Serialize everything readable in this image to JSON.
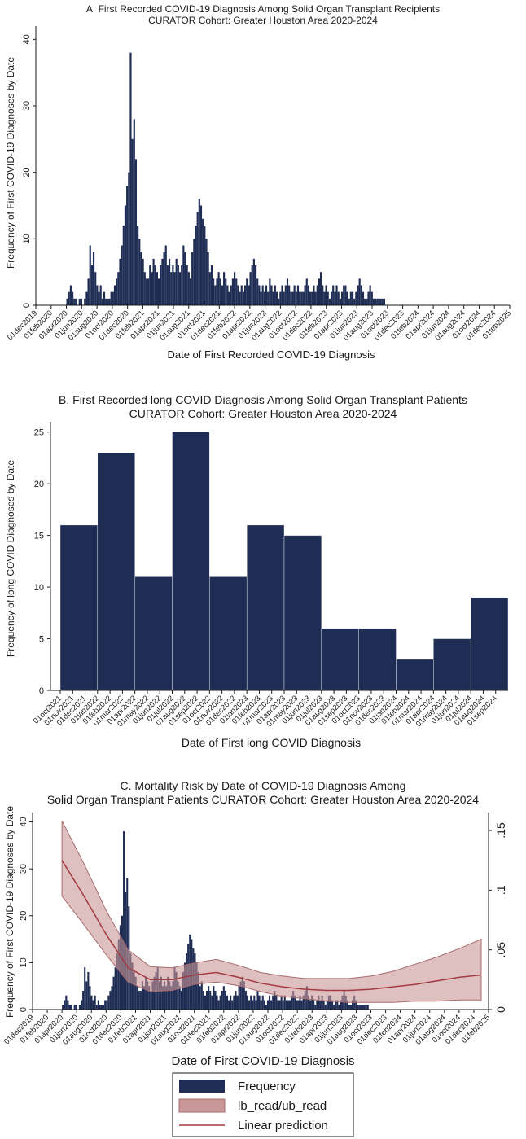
{
  "colors": {
    "bar": "#1f2d55",
    "band_fill": "#c99698",
    "band_stroke": "#a86a6d",
    "line": "#a33a3f",
    "axis": "#1a1a1a"
  },
  "chart_data": [
    {
      "id": "A",
      "type": "bar",
      "title_lines": [
        "A. First Recorded COVID-19 Diagnosis Among Solid Organ Transplant Recipients",
        "CURATOR Cohort: Greater Houston Area 2020-2024"
      ],
      "xlabel": "Date of First Recorded COVID-19 Diagnosis",
      "ylabel": "Frequency of First COVID-19 Diagnoses by Date",
      "xlim": [
        2019.917,
        2025.083
      ],
      "ylim": [
        0,
        42
      ],
      "yticks": [
        0,
        10,
        20,
        30,
        40
      ],
      "xtick_labels": [
        "01dec2019",
        "01feb2020",
        "01apr2020",
        "01jun2020",
        "01aug2020",
        "01oct2020",
        "01dec2020",
        "01feb2021",
        "01apr2021",
        "01jun2021",
        "01aug2021",
        "01oct2021",
        "01dec2021",
        "01feb2022",
        "01apr2022",
        "01jun2022",
        "01aug2022",
        "01oct2022",
        "01dec2022",
        "01feb2023",
        "01apr2023",
        "01jun2023",
        "01aug2023",
        "01oct2023",
        "01dec2023",
        "01feb2024",
        "01apr2024",
        "01jun2024",
        "01aug2024",
        "01oct2024",
        "01dec2024",
        "01feb2025"
      ],
      "bin_start": 2020.25,
      "bin_width": 0.0192,
      "values": [
        1,
        2,
        3,
        2,
        1,
        1,
        0,
        1,
        1,
        0,
        1,
        2,
        4,
        9,
        6,
        8,
        5,
        3,
        2,
        3,
        1,
        2,
        1,
        1,
        1,
        2,
        2,
        3,
        4,
        5,
        7,
        9,
        12,
        15,
        18,
        20,
        38,
        25,
        28,
        22,
        12,
        10,
        8,
        7,
        5,
        4,
        4,
        6,
        5,
        7,
        6,
        5,
        4,
        6,
        7,
        8,
        9,
        6,
        7,
        5,
        6,
        5,
        7,
        6,
        5,
        6,
        9,
        8,
        6,
        5,
        4,
        8,
        10,
        12,
        14,
        16,
        15,
        13,
        12,
        10,
        8,
        5,
        6,
        4,
        3,
        4,
        5,
        4,
        3,
        5,
        4,
        3,
        2,
        3,
        4,
        5,
        4,
        3,
        2,
        3,
        2,
        3,
        4,
        3,
        5,
        6,
        7,
        6,
        4,
        3,
        2,
        3,
        2,
        3,
        2,
        4,
        3,
        2,
        3,
        2,
        1,
        2,
        3,
        2,
        3,
        4,
        3,
        2,
        2,
        3,
        2,
        3,
        2,
        2,
        2,
        3,
        4,
        3,
        2,
        2,
        3,
        2,
        3,
        4,
        5,
        3,
        2,
        3,
        2,
        1,
        2,
        3,
        2,
        3,
        2,
        1,
        2,
        3,
        3,
        2,
        1,
        2,
        2,
        1,
        2,
        3,
        4,
        3,
        2,
        1,
        1,
        2,
        3,
        2,
        1,
        1,
        1,
        1,
        1,
        1,
        1
      ]
    },
    {
      "id": "B",
      "type": "bar",
      "title_lines": [
        "B. First Recorded long COVID Diagnosis Among Solid Organ Transplant Patients",
        "CURATOR Cohort: Greater Houston Area 2020-2024"
      ],
      "xlabel": "Date of First long COVID Diagnosis",
      "ylabel": "Frequency of long COVID Diagnoses by Date",
      "ylim": [
        0,
        26
      ],
      "yticks": [
        0,
        5,
        10,
        15,
        20,
        25
      ],
      "xtick_labels": [
        "01oct2021",
        "01nov2021",
        "01dec2021",
        "01jan2022",
        "01feb2022",
        "01mar2022",
        "01apr2022",
        "01may2022",
        "01jun2022",
        "01jul2022",
        "01aug2022",
        "01sep2022",
        "01oct2022",
        "01nov2022",
        "01dec2022",
        "01jan2023",
        "01feb2023",
        "01mar2023",
        "01apr2023",
        "01may2023",
        "01jun2023",
        "01jul2023",
        "01aug2023",
        "01sep2023",
        "01oct2023",
        "01nov2023",
        "01dec2023",
        "01jan2024",
        "01feb2024",
        "01mar2024",
        "01apr2024",
        "01may2024",
        "01jun2024",
        "01jul2024",
        "01aug2024",
        "01sep2024"
      ],
      "bin_starts_month_index": [
        0,
        3,
        6,
        9,
        12,
        15,
        18,
        21,
        24,
        27,
        30,
        33
      ],
      "bin_width_months": 3,
      "values": [
        16,
        23,
        11,
        25,
        11,
        16,
        15,
        6,
        6,
        3,
        5,
        9
      ]
    },
    {
      "id": "C",
      "type": "bar+area+line",
      "title_lines": [
        "C. Mortality Risk by Date of COVID-19 Diagnosis Among",
        "Solid Organ Transplant Patients CURATOR Cohort: Greater Houston Area 2020-2024"
      ],
      "xlabel": "Date of First COVID-19 Diagnosis",
      "ylabel": "Frequency of First COVID-19 Diagnoses by Date",
      "ylim_left": [
        0,
        42
      ],
      "yticks_left": [
        0,
        10,
        20,
        30,
        40
      ],
      "ylim_right": [
        0,
        0.165
      ],
      "yticks_right": [
        0,
        0.05,
        0.1,
        0.15
      ],
      "ytick_right_labels": [
        "0",
        ".05",
        ".1",
        ".15"
      ],
      "xtick_labels": [
        "01dec2019",
        "01feb2020",
        "01apr2020",
        "01jun2020",
        "01aug2020",
        "01oct2020",
        "01dec2020",
        "01feb2021",
        "01apr2021",
        "01jun2021",
        "01aug2021",
        "01oct2021",
        "01dec2021",
        "01feb2022",
        "01apr2022",
        "01jun2022",
        "01aug2022",
        "01oct2022",
        "01dec2022",
        "01feb2023",
        "01apr2023",
        "01jun2023",
        "01aug2023",
        "01oct2023",
        "01dec2023",
        "01feb2024",
        "01apr2024",
        "01jun2024",
        "01aug2024",
        "01oct2024",
        "01dec2024",
        "01feb2025"
      ],
      "fit_x": [
        2020.25,
        2020.5,
        2020.75,
        2021.0,
        2021.25,
        2021.5,
        2021.75,
        2022.0,
        2022.25,
        2022.5,
        2022.75,
        2023.0,
        2023.25,
        2023.5,
        2023.75,
        2024.0,
        2024.25,
        2024.5,
        2024.75,
        2025.0
      ],
      "prediction": [
        0.125,
        0.095,
        0.063,
        0.035,
        0.025,
        0.025,
        0.029,
        0.031,
        0.027,
        0.022,
        0.019,
        0.017,
        0.016,
        0.016,
        0.017,
        0.019,
        0.021,
        0.024,
        0.027,
        0.029
      ],
      "lb": [
        0.095,
        0.071,
        0.046,
        0.023,
        0.015,
        0.016,
        0.021,
        0.023,
        0.02,
        0.015,
        0.011,
        0.009,
        0.007,
        0.006,
        0.006,
        0.006,
        0.007,
        0.007,
        0.008,
        0.008
      ],
      "ub": [
        0.158,
        0.122,
        0.083,
        0.05,
        0.036,
        0.035,
        0.039,
        0.042,
        0.037,
        0.031,
        0.028,
        0.026,
        0.026,
        0.026,
        0.028,
        0.032,
        0.038,
        0.044,
        0.051,
        0.059
      ],
      "legend": [
        "Frequency",
        "lb_read/ub_read",
        "Linear prediction"
      ]
    }
  ]
}
